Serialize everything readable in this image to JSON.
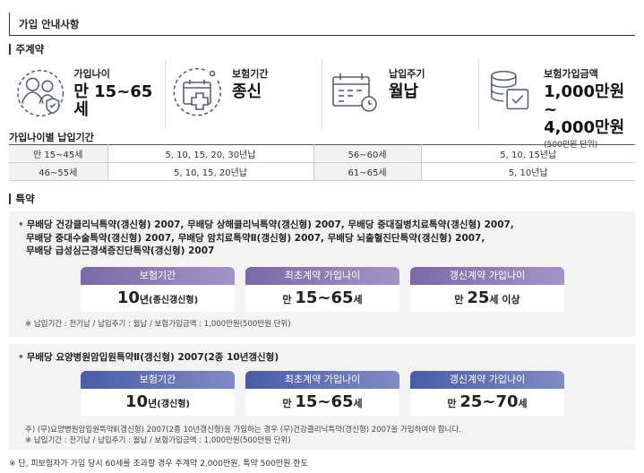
{
  "title": "가입 안내사항",
  "main_contract": {
    "heading": "주계약",
    "items": [
      {
        "label": "가입나이",
        "value": "만 15~65세",
        "sub": "",
        "icon": "family-icon"
      },
      {
        "label": "보험기간",
        "value": "종신",
        "sub": "",
        "icon": "calendar-plus-icon"
      },
      {
        "label": "납입주기",
        "value": "월납",
        "sub": "",
        "icon": "calendar-clock-icon"
      },
      {
        "label": "보험가입금액",
        "value": "1,000만원~",
        "value2": "4,000만원",
        "sub": "(500만원 단위)",
        "icon": "coins-check-icon"
      }
    ]
  },
  "age_period": {
    "title": "가입나이별 납입기간",
    "rows": [
      [
        "만 15~45세",
        "5, 10, 15, 20, 30년납",
        "56~60세",
        "5, 10, 15년납"
      ],
      [
        "46~55세",
        "5, 10, 15, 20년납",
        "61~65세",
        "5, 10년납"
      ]
    ]
  },
  "riders": {
    "heading": "특약",
    "group1": {
      "lines": [
        "무배당 건강클리닉특약(갱신형) 2007, 무배당 상해클리닉특약(갱신형) 2007, 무배당 중대질병치료특약(갱신형) 2007,",
        "무배당 중대수술특약(갱신형) 2007, 무배당 암치료특약Ⅱ(갱신형) 2007, 무배당 뇌출혈진단특약(갱신형) 2007,",
        "무배당 급성심근경색증진단특약(갱신형) 2007"
      ],
      "badges": [
        {
          "tab": "보험기간",
          "big": "10",
          "rest": "년",
          "small": "(종신갱신형)"
        },
        {
          "tab": "최초계약 가입나이",
          "pre": "만 ",
          "big": "15~65",
          "rest": "세"
        },
        {
          "tab": "갱신계약 가입나이",
          "pre": "만 ",
          "big": "25",
          "rest": "세 이상"
        }
      ],
      "note": "※ 납입기간 : 전기납 / 납입주기 : 월납 / 보험가입금액 : 1,000만원(500만원 단위)"
    },
    "group2": {
      "lines": [
        "무배당 요양병원암입원특약Ⅱ(갱신형) 2007(2종 10년갱신형)"
      ],
      "badges": [
        {
          "tab": "보험기간",
          "big": "10",
          "rest": "년",
          "small": "(갱신형)"
        },
        {
          "tab": "최초계약 가입나이",
          "pre": "만 ",
          "big": "15~65",
          "rest": "세"
        },
        {
          "tab": "갱신계약 가입나이",
          "pre": "만 ",
          "big": "25~70",
          "rest": "세"
        }
      ],
      "note1": "주) (무)요양병원암입원특약Ⅱ(갱신형) 2007(2종 10년갱신형)을 가입하는 경우 (무)건강클리닉특약(갱신형) 2007을 가입하여야 합니다.",
      "note2": "※ 납입기간 : 전기납 / 납입주기 : 월납 / 보험가입금액 : 1,000만원(500만원 단위)"
    }
  },
  "footnote": "※ 단, 피보험자가 가입 당시 60세를 초과할 경우 주계약 2,000만원, 특약 500만원 한도",
  "colors": {
    "purple": "#7b6aa8",
    "blue": "#4a5ca8",
    "icon": "#5a5a8a"
  }
}
